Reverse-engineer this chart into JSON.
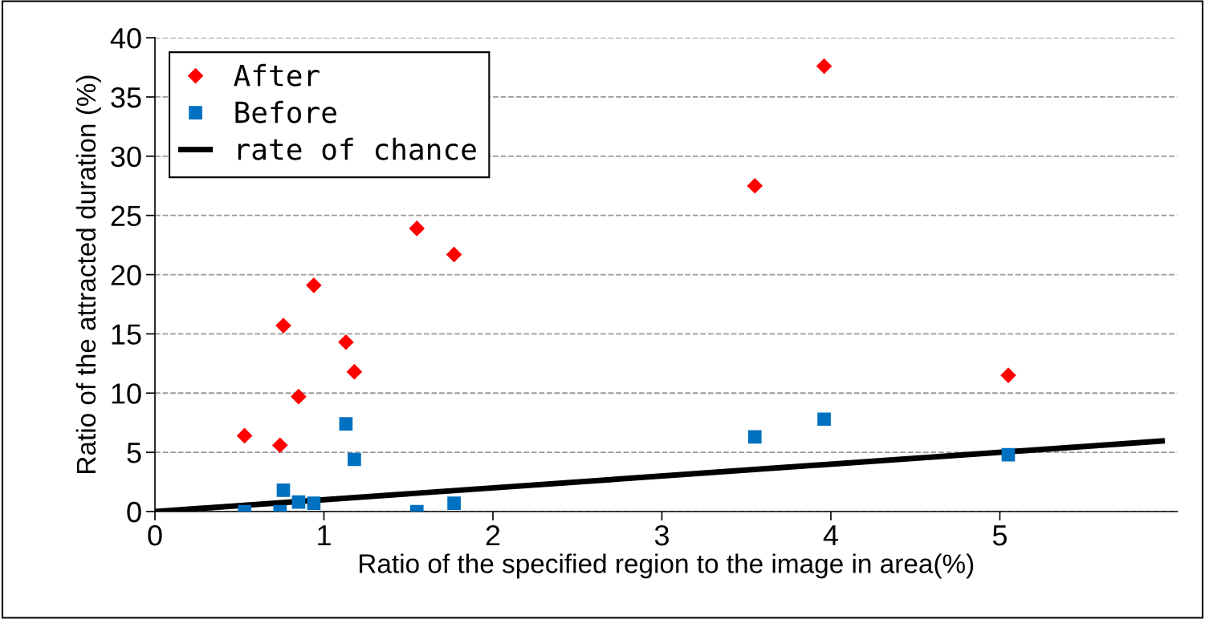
{
  "chart_data": {
    "type": "scatter",
    "xlabel": "Ratio of the specified region to the image in area(%)",
    "ylabel": "Ratio of the attracted duration (%)",
    "xlim": [
      0,
      6.05
    ],
    "xticks": [
      0,
      1,
      2,
      3,
      4,
      5
    ],
    "ylim": [
      0,
      40
    ],
    "yticks": [
      0,
      5,
      10,
      15,
      20,
      25,
      30,
      35,
      40
    ],
    "grid": "y",
    "legend": "top left",
    "series": [
      {
        "name": "After",
        "marker": "diamond",
        "color": "#ff0000",
        "x": [
          0.53,
          0.74,
          0.76,
          0.85,
          0.94,
          1.13,
          1.18,
          1.55,
          1.77,
          3.55,
          3.96,
          5.05
        ],
        "values": [
          6.4,
          5.6,
          15.7,
          9.7,
          19.1,
          14.3,
          11.8,
          23.9,
          21.7,
          27.5,
          37.6,
          11.5
        ]
      },
      {
        "name": "Before",
        "marker": "square",
        "color": "#0070c0",
        "x": [
          0.53,
          0.74,
          0.76,
          0.85,
          0.94,
          1.13,
          1.18,
          1.55,
          1.77,
          3.55,
          3.96,
          5.05
        ],
        "values": [
          0,
          0,
          1.8,
          0.8,
          0.7,
          7.4,
          4.4,
          0,
          0.7,
          6.3,
          7.8,
          4.8
        ]
      },
      {
        "name": "rate of chance",
        "type": "line",
        "marker": "none",
        "line_style": "solid",
        "color": "#000000",
        "x": [
          0,
          5.96
        ],
        "values": [
          0,
          5.96
        ]
      }
    ]
  }
}
